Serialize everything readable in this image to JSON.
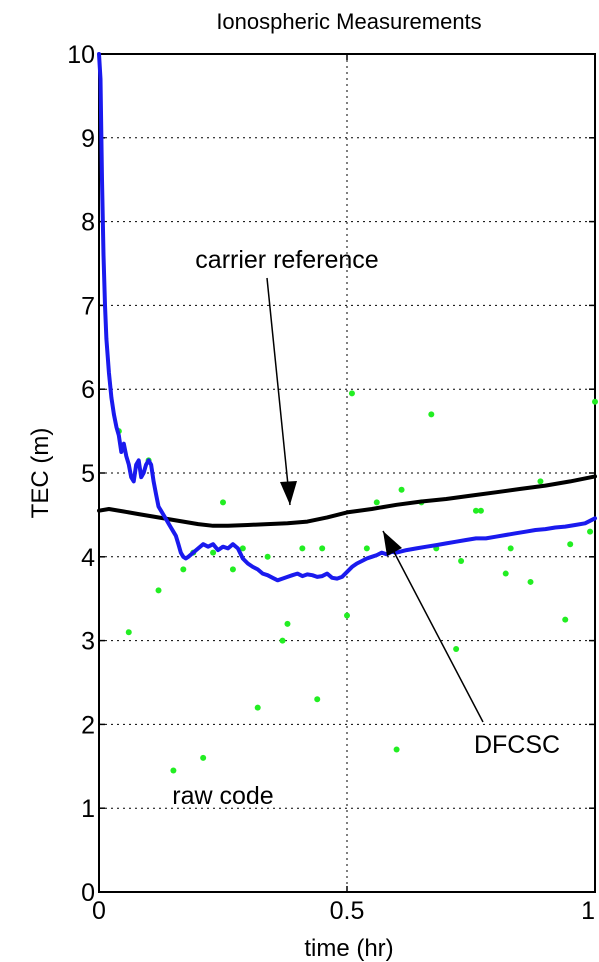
{
  "chart_data": {
    "type": "line",
    "title": "Ionospheric Measurements",
    "xlabel": "time (hr)",
    "ylabel": "TEC (m)",
    "xlim": [
      0,
      1
    ],
    "ylim": [
      0,
      10
    ],
    "x_ticks": [
      0,
      0.5,
      1
    ],
    "x_tick_labels": [
      "0",
      "0.5",
      "1"
    ],
    "y_ticks": [
      0,
      1,
      2,
      3,
      4,
      5,
      6,
      7,
      8,
      9,
      10
    ],
    "y_tick_labels": [
      "0",
      "1",
      "2",
      "3",
      "4",
      "5",
      "6",
      "7",
      "8",
      "9",
      "10"
    ],
    "grid": true,
    "grid_style": "dotted",
    "series": [
      {
        "name": "carrier reference",
        "kind": "line",
        "color": "#000000",
        "x": [
          0,
          0.02,
          0.05,
          0.08,
          0.11,
          0.14,
          0.17,
          0.2,
          0.23,
          0.26,
          0.3,
          0.34,
          0.38,
          0.42,
          0.46,
          0.5,
          0.55,
          0.6,
          0.65,
          0.7,
          0.75,
          0.8,
          0.85,
          0.9,
          0.95,
          1.0
        ],
        "y": [
          4.55,
          4.57,
          4.54,
          4.51,
          4.48,
          4.45,
          4.42,
          4.39,
          4.37,
          4.37,
          4.38,
          4.39,
          4.4,
          4.42,
          4.47,
          4.53,
          4.57,
          4.62,
          4.66,
          4.69,
          4.73,
          4.77,
          4.81,
          4.85,
          4.9,
          4.96
        ]
      },
      {
        "name": "DFCSC",
        "kind": "line",
        "color": "#1a1aee",
        "x": [
          0.0,
          0.003,
          0.006,
          0.009,
          0.012,
          0.015,
          0.02,
          0.025,
          0.03,
          0.035,
          0.04,
          0.045,
          0.05,
          0.055,
          0.06,
          0.065,
          0.07,
          0.075,
          0.08,
          0.085,
          0.09,
          0.095,
          0.1,
          0.105,
          0.11,
          0.115,
          0.12,
          0.125,
          0.13,
          0.135,
          0.14,
          0.145,
          0.15,
          0.155,
          0.16,
          0.165,
          0.17,
          0.175,
          0.18,
          0.19,
          0.2,
          0.21,
          0.22,
          0.23,
          0.24,
          0.25,
          0.26,
          0.27,
          0.28,
          0.29,
          0.3,
          0.31,
          0.32,
          0.33,
          0.34,
          0.35,
          0.36,
          0.37,
          0.38,
          0.39,
          0.4,
          0.41,
          0.42,
          0.43,
          0.44,
          0.45,
          0.46,
          0.47,
          0.48,
          0.49,
          0.5,
          0.51,
          0.52,
          0.53,
          0.54,
          0.55,
          0.56,
          0.57,
          0.58,
          0.59,
          0.6,
          0.62,
          0.64,
          0.66,
          0.68,
          0.7,
          0.72,
          0.74,
          0.76,
          0.78,
          0.8,
          0.82,
          0.84,
          0.86,
          0.88,
          0.9,
          0.92,
          0.94,
          0.96,
          0.98,
          1.0
        ],
        "y": [
          10.0,
          9.7,
          8.5,
          7.6,
          7.0,
          6.6,
          6.2,
          5.9,
          5.7,
          5.55,
          5.45,
          5.25,
          5.35,
          5.2,
          5.1,
          4.95,
          4.9,
          5.1,
          5.15,
          4.95,
          5.0,
          5.1,
          5.15,
          5.1,
          4.9,
          4.75,
          4.6,
          4.55,
          4.5,
          4.45,
          4.4,
          4.35,
          4.3,
          4.25,
          4.15,
          4.05,
          4.0,
          3.98,
          4.0,
          4.05,
          4.1,
          4.15,
          4.12,
          4.15,
          4.08,
          4.12,
          4.1,
          4.15,
          4.1,
          3.98,
          3.92,
          3.88,
          3.85,
          3.8,
          3.78,
          3.75,
          3.72,
          3.74,
          3.76,
          3.78,
          3.8,
          3.77,
          3.79,
          3.78,
          3.76,
          3.77,
          3.8,
          3.75,
          3.74,
          3.76,
          3.82,
          3.88,
          3.92,
          3.95,
          3.98,
          4.0,
          4.02,
          4.05,
          4.03,
          4.06,
          4.05,
          4.08,
          4.1,
          4.12,
          4.14,
          4.16,
          4.18,
          4.2,
          4.22,
          4.22,
          4.24,
          4.26,
          4.28,
          4.3,
          4.32,
          4.33,
          4.35,
          4.36,
          4.38,
          4.4,
          4.46
        ]
      },
      {
        "name": "raw code",
        "kind": "scatter",
        "color": "#22ee22",
        "x": [
          0.04,
          0.06,
          0.1,
          0.12,
          0.15,
          0.17,
          0.19,
          0.21,
          0.23,
          0.25,
          0.27,
          0.29,
          0.32,
          0.34,
          0.37,
          0.38,
          0.41,
          0.44,
          0.45,
          0.5,
          0.51,
          0.54,
          0.56,
          0.6,
          0.61,
          0.65,
          0.67,
          0.68,
          0.72,
          0.73,
          0.76,
          0.77,
          0.82,
          0.83,
          0.87,
          0.89,
          0.94,
          0.95,
          0.99,
          1.0
        ],
        "y": [
          5.5,
          3.1,
          5.15,
          3.6,
          1.45,
          3.85,
          4.05,
          1.6,
          4.05,
          4.65,
          3.85,
          4.1,
          2.2,
          4.0,
          3.0,
          3.2,
          4.1,
          2.3,
          4.1,
          3.3,
          5.95,
          4.1,
          4.65,
          1.7,
          4.8,
          4.65,
          5.7,
          4.1,
          2.9,
          3.95,
          4.55,
          4.55,
          3.8,
          4.1,
          3.7,
          4.9,
          3.25,
          4.15,
          4.3,
          5.85
        ]
      }
    ],
    "annotations": [
      {
        "text": "carrier reference",
        "points_to": "carrier reference"
      },
      {
        "text": "DFCSC",
        "points_to": "DFCSC"
      },
      {
        "text": "raw code",
        "points_to": "raw code"
      }
    ]
  }
}
